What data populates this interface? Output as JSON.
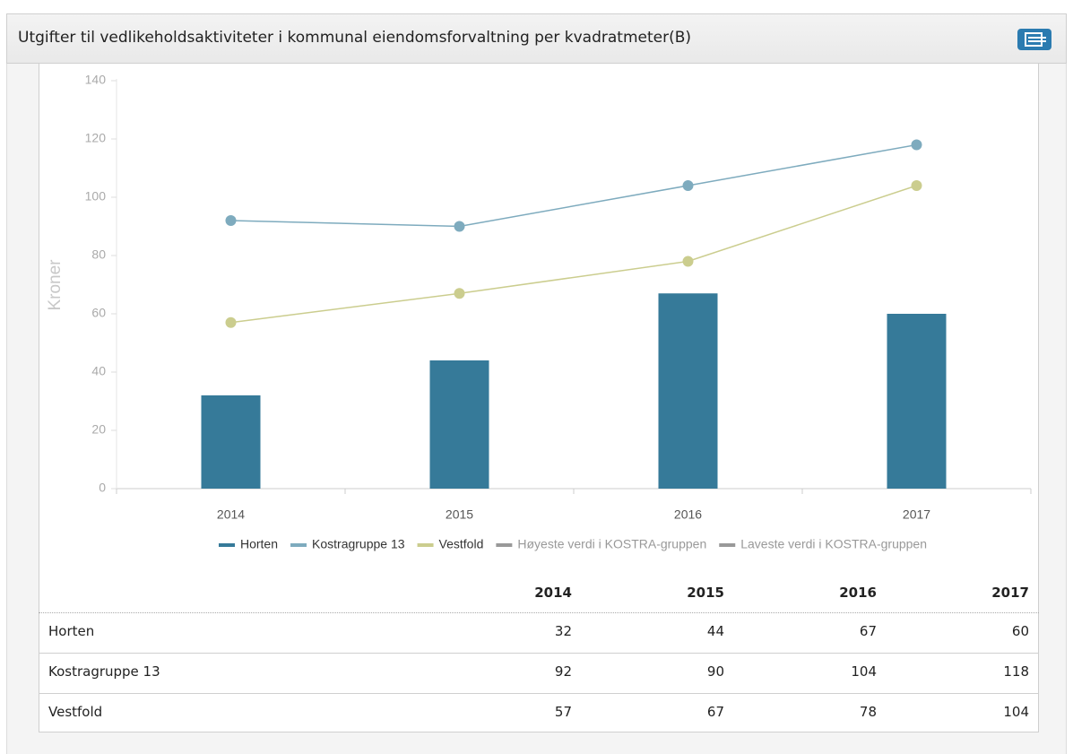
{
  "header": {
    "title": "Utgifter til vedlikeholdsaktiviteter i kommunal eiendomsforvaltning per kvadratmeter(B)"
  },
  "chart_data": {
    "type": "bar",
    "y_label": "Kroner",
    "categories": [
      "2014",
      "2015",
      "2016",
      "2017"
    ],
    "ylim": [
      0,
      140
    ],
    "yticks": [
      0,
      20,
      40,
      60,
      80,
      100,
      120,
      140
    ],
    "series": [
      {
        "name": "Horten",
        "type": "bar",
        "color": "#367a99",
        "values": [
          32,
          44,
          67,
          60
        ]
      },
      {
        "name": "Kostragruppe 13",
        "type": "line",
        "color": "#7eabbe",
        "values": [
          92,
          90,
          104,
          118
        ]
      },
      {
        "name": "Vestfold",
        "type": "line",
        "color": "#cbcd8e",
        "values": [
          57,
          67,
          78,
          104
        ]
      },
      {
        "name": "Høyeste verdi i KOSTRA-gruppen",
        "type": "line",
        "color": "#999999",
        "hidden": true,
        "values": [
          null,
          null,
          null,
          null
        ]
      },
      {
        "name": "Laveste verdi i KOSTRA-gruppen",
        "type": "line",
        "color": "#999999",
        "hidden": true,
        "values": [
          null,
          null,
          null,
          null
        ]
      }
    ]
  },
  "table": {
    "columns": [
      "2014",
      "2015",
      "2016",
      "2017"
    ],
    "rows": [
      {
        "label": "Horten",
        "values": [
          32,
          44,
          67,
          60
        ]
      },
      {
        "label": "Kostragruppe 13",
        "values": [
          92,
          90,
          104,
          118
        ]
      },
      {
        "label": "Vestfold",
        "values": [
          57,
          67,
          78,
          104
        ]
      }
    ]
  }
}
